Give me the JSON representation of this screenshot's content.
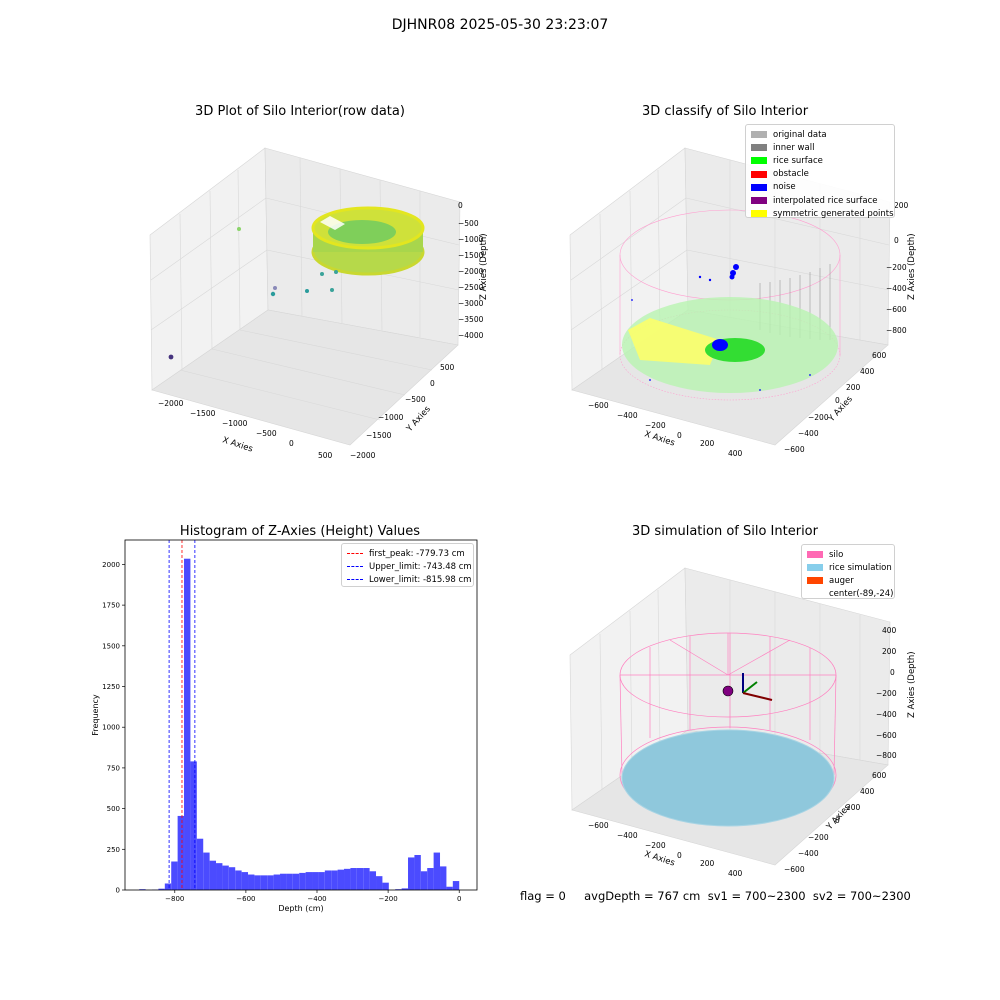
{
  "suptitle": "DJHNR08 2025-05-30 23:23:07",
  "status_text": "flag = 0     avgDepth = 767 cm  sv1 = 700~2300  sv2 = 700~2300",
  "chart_data": [
    {
      "type": "scatter",
      "projection": "3d",
      "title": "3D Plot of Silo Interior(row data)",
      "xlabel": "X Axies",
      "ylabel": "Y Axies",
      "zlabel": "Z Axies (Depth)",
      "xticks": [
        "−2000",
        "−1500",
        "−1000",
        "−500",
        "0",
        "500"
      ],
      "yticks": [
        "500",
        "0",
        "−500",
        "−1000",
        "−1500",
        "−2000"
      ],
      "zticks": [
        "0",
        "−500",
        "−1000",
        "−1500",
        "−2000",
        "−2500",
        "−3000",
        "−3500",
        "−4000"
      ],
      "xlim": [
        -2200,
        700
      ],
      "ylim": [
        -2000,
        700
      ],
      "zlim": [
        -4200,
        100
      ],
      "colormap": "viridis",
      "description_points": "silo point cloud ring near z 0 to -1500, scattered outliers",
      "outliers": [
        {
          "x": -2100,
          "y": 300,
          "z": -500
        },
        {
          "x": -1800,
          "y": -1600,
          "z": -3800
        },
        {
          "x": -500,
          "y": -300,
          "z": -2800
        },
        {
          "x": -100,
          "y": -400,
          "z": -2900
        },
        {
          "x": 200,
          "y": -200,
          "z": -2500
        }
      ]
    },
    {
      "type": "scatter",
      "projection": "3d",
      "title": "3D classify of Silo Interior",
      "xlabel": "X Axies",
      "ylabel": "Y Axies",
      "zlabel": "Z Axies (Depth)",
      "xticks": [
        "−600",
        "−400",
        "−200",
        "0",
        "200",
        "400"
      ],
      "yticks": [
        "600",
        "400",
        "200",
        "0",
        "−200",
        "−400",
        "−600"
      ],
      "zticks": [
        "200",
        "0",
        "−200",
        "−400",
        "−600",
        "−800"
      ],
      "xlim": [
        -700,
        500
      ],
      "ylim": [
        -700,
        700
      ],
      "zlim": [
        -900,
        300
      ],
      "legend": [
        {
          "label": "original data",
          "color": "#b0b0b0"
        },
        {
          "label": "inner wall",
          "color": "#808080"
        },
        {
          "label": "rice surface",
          "color": "#00ff00"
        },
        {
          "label": "obstacle",
          "color": "#ff0000"
        },
        {
          "label": "noise",
          "color": "#0000ff"
        },
        {
          "label": "interpolated rice surface",
          "color": "#800080"
        },
        {
          "label": "symmetric generated points",
          "color": "#ffff00"
        }
      ],
      "legend_loc": "top-right"
    },
    {
      "type": "bar",
      "title": "Histogram of Z-Axies (Height) Values",
      "xlabel": "Depth (cm)",
      "ylabel": "Frequency",
      "xlim": [
        -940,
        50
      ],
      "ylim": [
        0,
        2150
      ],
      "xticks": [
        -800,
        -600,
        -400,
        -200,
        0
      ],
      "yticks": [
        0,
        250,
        500,
        750,
        1000,
        1250,
        1500,
        1750,
        2000
      ],
      "bin_width": 18,
      "bins": [
        {
          "x": -900,
          "v": 5
        },
        {
          "x": -882,
          "v": 0
        },
        {
          "x": -864,
          "v": 2
        },
        {
          "x": -846,
          "v": 8
        },
        {
          "x": -828,
          "v": 40
        },
        {
          "x": -810,
          "v": 175
        },
        {
          "x": -792,
          "v": 455
        },
        {
          "x": -774,
          "v": 2035
        },
        {
          "x": -756,
          "v": 790
        },
        {
          "x": -738,
          "v": 315
        },
        {
          "x": -720,
          "v": 230
        },
        {
          "x": -702,
          "v": 180
        },
        {
          "x": -684,
          "v": 165
        },
        {
          "x": -666,
          "v": 150
        },
        {
          "x": -648,
          "v": 140
        },
        {
          "x": -630,
          "v": 120
        },
        {
          "x": -612,
          "v": 110
        },
        {
          "x": -594,
          "v": 95
        },
        {
          "x": -576,
          "v": 90
        },
        {
          "x": -558,
          "v": 90
        },
        {
          "x": -540,
          "v": 90
        },
        {
          "x": -522,
          "v": 95
        },
        {
          "x": -504,
          "v": 100
        },
        {
          "x": -486,
          "v": 100
        },
        {
          "x": -468,
          "v": 100
        },
        {
          "x": -450,
          "v": 105
        },
        {
          "x": -432,
          "v": 110
        },
        {
          "x": -414,
          "v": 110
        },
        {
          "x": -396,
          "v": 110
        },
        {
          "x": -378,
          "v": 120
        },
        {
          "x": -360,
          "v": 120
        },
        {
          "x": -342,
          "v": 125
        },
        {
          "x": -324,
          "v": 130
        },
        {
          "x": -306,
          "v": 135
        },
        {
          "x": -288,
          "v": 135
        },
        {
          "x": -270,
          "v": 135
        },
        {
          "x": -252,
          "v": 115
        },
        {
          "x": -234,
          "v": 85
        },
        {
          "x": -216,
          "v": 45
        },
        {
          "x": -198,
          "v": 0
        },
        {
          "x": -180,
          "v": 5
        },
        {
          "x": -162,
          "v": 10
        },
        {
          "x": -144,
          "v": 200
        },
        {
          "x": -126,
          "v": 215
        },
        {
          "x": -108,
          "v": 115
        },
        {
          "x": -90,
          "v": 135
        },
        {
          "x": -72,
          "v": 230
        },
        {
          "x": -54,
          "v": 145
        },
        {
          "x": -36,
          "v": 20
        },
        {
          "x": -18,
          "v": 55
        }
      ],
      "vlines": [
        {
          "label": "first_peak: -779.73 cm",
          "x": -779.73,
          "color": "#ff0000"
        },
        {
          "label": "Upper_limit: -743.48 cm",
          "x": -743.48,
          "color": "#0000ff"
        },
        {
          "label": "Lower_limit: -815.98 cm",
          "x": -815.98,
          "color": "#0000ff"
        }
      ],
      "legend_loc": "top-right",
      "bar_color": "#4b4bff"
    },
    {
      "type": "scatter",
      "projection": "3d",
      "title": "3D simulation of Silo Interior",
      "xlabel": "X Axies",
      "ylabel": "Y Axies",
      "zlabel": "Z Axies (Depth)",
      "xticks": [
        "−600",
        "−400",
        "−200",
        "0",
        "200",
        "400"
      ],
      "yticks": [
        "600",
        "400",
        "200",
        "0",
        "−200",
        "−400",
        "−600"
      ],
      "zticks": [
        "400",
        "200",
        "0",
        "−200",
        "−400",
        "−600",
        "−800"
      ],
      "xlim": [
        -700,
        500
      ],
      "ylim": [
        -700,
        700
      ],
      "zlim": [
        -900,
        500
      ],
      "legend": [
        {
          "label": "silo",
          "color": "#ff69b4"
        },
        {
          "label": "rice simulation",
          "color": "#87ceeb"
        },
        {
          "label": "auger",
          "color": "#ff4500"
        },
        {
          "label": "center(-89,-24)",
          "color": ""
        }
      ],
      "legend_loc": "top-right"
    }
  ]
}
